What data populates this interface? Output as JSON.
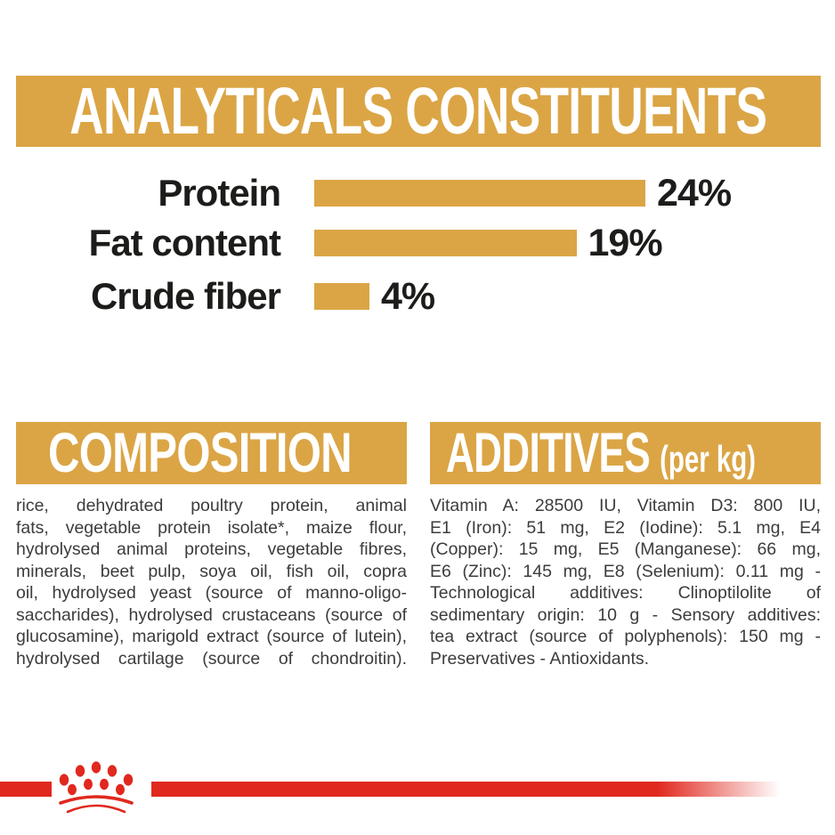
{
  "colors": {
    "gold": "#DBA545",
    "red": "#E0281E",
    "banner_text": "#FFFFFF",
    "chart_text": "#1C1C1A",
    "body_text": "#3C3C3B",
    "background": "#FFFFFF"
  },
  "analyticals": {
    "title": "ANALYTICALS CONSTITUENTS"
  },
  "chart_data": {
    "type": "bar",
    "orientation": "horizontal",
    "title": "ANALYTICALS CONSTITUENTS",
    "categories": [
      "Protein",
      "Fat content",
      "Crude fiber"
    ],
    "values": [
      24,
      19,
      4
    ],
    "unit": "%",
    "value_labels": [
      "24%",
      "19%",
      "4%"
    ],
    "bar_color": "#DBA545",
    "xlim": [
      0,
      24
    ],
    "grid": false,
    "legend": false
  },
  "composition": {
    "title": "COMPOSITION",
    "lines": [
      "rice, dehydrated poultry protein, animal",
      "fats, vegetable protein isolate*, maize flour,",
      "hydrolysed animal proteins, vegetable fibres,",
      "minerals, beet pulp, soya oil, fish oil, copra",
      "oil, hydrolysed yeast (source of manno-oligo-",
      "saccharides), hydrolysed crustaceans (source of",
      "glucosamine), marigold extract (source of lutein),",
      "hydrolysed cartilage (source of chondroitin)."
    ]
  },
  "additives": {
    "title": "ADDITIVES",
    "title_suffix": "(per kg)",
    "lines": [
      "Vitamin A: 28500 IU, Vitamin D3: 800 IU,",
      "E1 (Iron): 51 mg, E2 (Iodine): 5.1 mg, E4",
      "(Copper): 15 mg, E5 (Manganese): 66 mg,",
      "E6 (Zinc): 145 mg, E8 (Selenium): 0.11 mg -",
      "Technological additives: Clinoptilolite of",
      "sedimentary origin: 10 g - Sensory additives:",
      "tea extract (source of polyphenols): 150 mg -",
      "Preservatives - Antioxidants."
    ]
  },
  "footer": {
    "logo": "royal-canin-crown"
  }
}
